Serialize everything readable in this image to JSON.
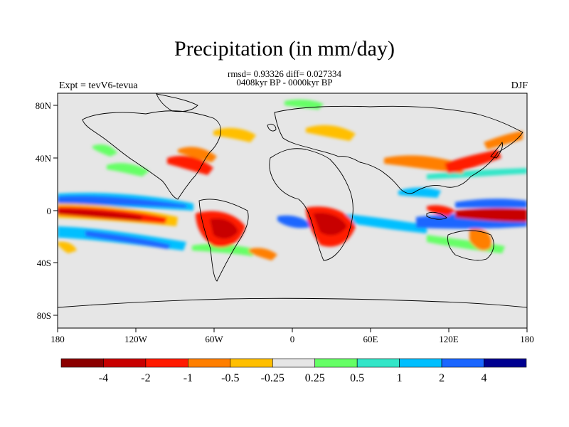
{
  "title": "Precipitation (in mm/day)",
  "stats": "rmsd= 0.93326 diff= 0.027334",
  "period": "0408kyr BP - 0000kyr BP",
  "experiment": "Expt = tevV6-tevua",
  "season": "DJF",
  "map": {
    "lat_ticks": [
      "80N",
      "40N",
      "0",
      "40S",
      "80S"
    ],
    "lon_ticks": [
      "180",
      "120W",
      "60W",
      "0",
      "60E",
      "120E",
      "180"
    ]
  },
  "colorbar": {
    "labels": [
      "-4",
      "-2",
      "-1",
      "-0.5",
      "-0.25",
      "0.25",
      "0.5",
      "1",
      "2",
      "4"
    ],
    "colors": [
      "#8b0000",
      "#c80000",
      "#ff1a00",
      "#ff7f00",
      "#ffbf00",
      "#e6e6e6",
      "#66ff66",
      "#33e6c8",
      "#00bfff",
      "#1a66ff",
      "#000090"
    ]
  }
}
